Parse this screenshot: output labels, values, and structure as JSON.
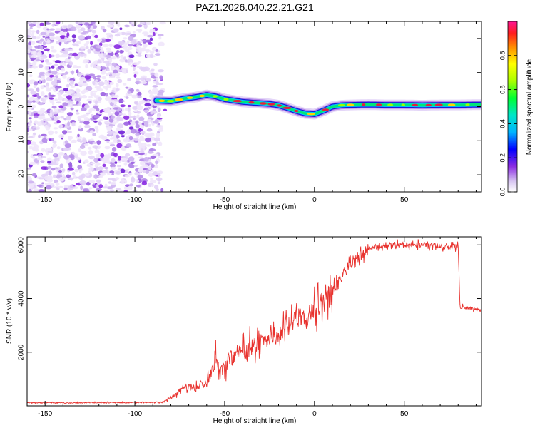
{
  "title": "PAZ1.2026.040.22.21.G21",
  "colors": {
    "snr_line": "#e8322e",
    "track_core": "#e5203a",
    "track_edge": "#1a1ad8",
    "noise": "#8a2be2",
    "axis": "#000000"
  },
  "chart_data": [
    {
      "type": "heatmap",
      "name": "spectrogram",
      "title": "PAZ1.2026.040.22.21.G21",
      "xlabel": "Height of straight line (km)",
      "ylabel": "Frequency (Hz)",
      "xlim": [
        -160,
        93
      ],
      "ylim": [
        -25,
        25
      ],
      "xticks": [
        -150,
        -100,
        -50,
        0,
        50
      ],
      "yticks": [
        -20,
        -10,
        0,
        10,
        20
      ],
      "noise_region": [
        -160,
        -85
      ],
      "track": {
        "x": [
          -88,
          -80,
          -72,
          -66,
          -60,
          -55,
          -50,
          -45,
          -40,
          -35,
          -30,
          -25,
          -20,
          -15,
          -10,
          -5,
          0,
          5,
          10,
          15,
          20,
          30,
          40,
          50,
          60,
          70,
          80,
          93
        ],
        "y": [
          1.8,
          1.6,
          2.4,
          2.8,
          3.4,
          3.0,
          2.2,
          1.8,
          1.4,
          1.2,
          1.0,
          0.8,
          0.4,
          -0.4,
          -1.3,
          -2.0,
          -2.2,
          -1.2,
          0.0,
          0.4,
          0.5,
          0.6,
          0.5,
          0.5,
          0.4,
          0.5,
          0.5,
          0.6
        ]
      },
      "colorbar": {
        "label": "Normalized spectral amplitude",
        "range": [
          0.0,
          1.0
        ],
        "ticks": [
          0.0,
          0.2,
          0.4,
          0.6,
          0.8
        ],
        "tick_labels": [
          "0.0",
          "0.2",
          "0.4",
          "0.6",
          "0.8"
        ]
      }
    },
    {
      "type": "line",
      "name": "snr",
      "title": "",
      "xlabel": "Height of straight line (km)",
      "ylabel": "SNR (10 * v/v)",
      "xlim": [
        -160,
        93
      ],
      "ylim": [
        0,
        6300
      ],
      "xticks": [
        -150,
        -100,
        -50,
        0,
        50
      ],
      "yticks": [
        2000,
        4000,
        6000
      ],
      "series": [
        {
          "name": "SNR",
          "x": [
            -160,
            -140,
            -120,
            -100,
            -85,
            -80,
            -75,
            -70,
            -65,
            -60,
            -57,
            -55,
            -52,
            -50,
            -45,
            -40,
            -35,
            -30,
            -25,
            -20,
            -15,
            -10,
            -5,
            0,
            5,
            10,
            15,
            20,
            25,
            30,
            35,
            40,
            50,
            60,
            70,
            75,
            79,
            80,
            81,
            85,
            90,
            93
          ],
          "y": [
            120,
            110,
            120,
            120,
            130,
            300,
            550,
            700,
            700,
            900,
            1300,
            1800,
            1300,
            1400,
            2000,
            2000,
            2200,
            2400,
            2500,
            2700,
            3000,
            3200,
            3300,
            3600,
            3900,
            4300,
            4800,
            5300,
            5600,
            5800,
            5950,
            6000,
            6000,
            6000,
            5950,
            5900,
            5950,
            6000,
            3700,
            3650,
            3600,
            3550
          ]
        }
      ]
    }
  ]
}
